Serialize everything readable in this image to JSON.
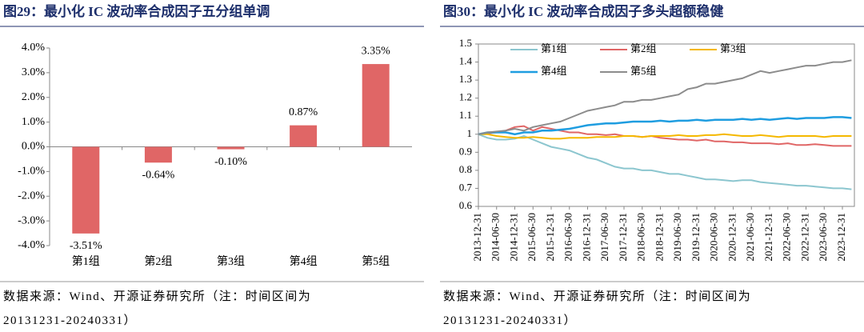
{
  "chart_data": [
    {
      "type": "bar",
      "title": "图29：最小化 IC 波动率合成因子五分组单调",
      "categories": [
        "第1组",
        "第2组",
        "第3组",
        "第4组",
        "第5组"
      ],
      "values": [
        -3.51,
        -0.64,
        -0.1,
        0.87,
        3.35
      ],
      "value_labels": [
        "-3.51%",
        "-0.64%",
        "-0.10%",
        "0.87%",
        "3.35%"
      ],
      "color": "#e06666",
      "ylim": [
        -4,
        4
      ],
      "yticks": [
        {
          "value": -4,
          "label": "-4.0%"
        },
        {
          "value": -3,
          "label": "-3.0%"
        },
        {
          "value": -2,
          "label": "-2.0%"
        },
        {
          "value": -1,
          "label": "-1.0%"
        },
        {
          "value": 0,
          "label": "0.0%"
        },
        {
          "value": 1,
          "label": "1.0%"
        },
        {
          "value": 2,
          "label": "2.0%"
        },
        {
          "value": 3,
          "label": "3.0%"
        },
        {
          "value": 4,
          "label": "4.0%"
        }
      ],
      "source": "数据来源：Wind、开源证券研究所（注：时间区间为20131231-20240331）"
    },
    {
      "type": "line",
      "title": "图30：最小化 IC 波动率合成因子多头超额稳健",
      "x": [
        "2013-12-31",
        null,
        "2014-06-30",
        null,
        "2014-12-31",
        null,
        "2015-06-30",
        null,
        "2015-12-31",
        null,
        "2016-06-30",
        null,
        "2016-12-31",
        null,
        "2017-06-30",
        null,
        "2017-12-31",
        null,
        "2018-06-30",
        null,
        "2018-12-31",
        null,
        "2019-06-30",
        null,
        "2019-12-31",
        null,
        "2020-06-30",
        null,
        "2020-12-31",
        null,
        "2021-06-30",
        null,
        "2021-12-31",
        null,
        "2022-06-30",
        null,
        "2022-12-31",
        null,
        "2023-06-30",
        null,
        "2023-12-31",
        null
      ],
      "series": [
        {
          "name": "第1组",
          "color": "#8cc6cf",
          "values": [
            1.0,
            0.98,
            0.97,
            0.97,
            0.975,
            0.99,
            0.97,
            0.95,
            0.93,
            0.92,
            0.91,
            0.89,
            0.87,
            0.86,
            0.84,
            0.82,
            0.81,
            0.81,
            0.8,
            0.8,
            0.79,
            0.78,
            0.78,
            0.77,
            0.76,
            0.75,
            0.75,
            0.745,
            0.74,
            0.745,
            0.745,
            0.735,
            0.73,
            0.725,
            0.72,
            0.715,
            0.715,
            0.71,
            0.705,
            0.7,
            0.7,
            0.695
          ]
        },
        {
          "name": "第2组",
          "color": "#e06666",
          "values": [
            1.0,
            1.005,
            1.01,
            1.02,
            1.04,
            1.045,
            1.02,
            1.04,
            1.03,
            1.02,
            1.01,
            1.01,
            1.0,
            1.0,
            0.995,
            1.0,
            0.99,
            0.99,
            0.985,
            0.99,
            0.98,
            0.975,
            0.97,
            0.97,
            0.965,
            0.97,
            0.96,
            0.96,
            0.955,
            0.955,
            0.95,
            0.95,
            0.95,
            0.945,
            0.95,
            0.94,
            0.94,
            0.945,
            0.94,
            0.935,
            0.935,
            0.935
          ]
        },
        {
          "name": "第3组",
          "color": "#f5b800",
          "values": [
            1.0,
            1.0,
            0.99,
            0.985,
            0.98,
            0.98,
            0.985,
            0.98,
            0.975,
            0.975,
            0.98,
            0.98,
            0.98,
            0.985,
            0.985,
            0.985,
            0.99,
            0.99,
            0.985,
            0.99,
            0.99,
            0.99,
            0.995,
            0.99,
            0.99,
            0.995,
            0.995,
            1.0,
            0.995,
            0.99,
            0.99,
            0.995,
            0.99,
            0.985,
            0.99,
            0.99,
            0.99,
            0.99,
            0.985,
            0.99,
            0.99,
            0.99
          ]
        },
        {
          "name": "第4组",
          "color": "#1f9de0",
          "values": [
            1.0,
            1.01,
            1.01,
            1.01,
            1.0,
            1.01,
            1.01,
            1.02,
            1.02,
            1.025,
            1.03,
            1.04,
            1.05,
            1.055,
            1.06,
            1.06,
            1.065,
            1.07,
            1.07,
            1.07,
            1.075,
            1.07,
            1.075,
            1.075,
            1.08,
            1.075,
            1.08,
            1.08,
            1.08,
            1.085,
            1.08,
            1.085,
            1.08,
            1.085,
            1.09,
            1.085,
            1.09,
            1.09,
            1.09,
            1.095,
            1.095,
            1.09
          ]
        },
        {
          "name": "第5组",
          "color": "#8c8c8c",
          "values": [
            1.0,
            1.01,
            1.015,
            1.02,
            1.03,
            1.02,
            1.04,
            1.05,
            1.06,
            1.07,
            1.09,
            1.11,
            1.13,
            1.14,
            1.15,
            1.16,
            1.18,
            1.18,
            1.19,
            1.19,
            1.2,
            1.21,
            1.22,
            1.25,
            1.26,
            1.28,
            1.28,
            1.29,
            1.3,
            1.31,
            1.33,
            1.35,
            1.34,
            1.35,
            1.36,
            1.37,
            1.38,
            1.38,
            1.39,
            1.4,
            1.4,
            1.41
          ]
        }
      ],
      "ylim": [
        0.6,
        1.5
      ],
      "yticks": [
        0.6,
        0.7,
        0.8,
        0.9,
        1,
        1.1,
        1.2,
        1.3,
        1.4,
        1.5
      ],
      "legend": "upper left",
      "source": "数据来源：Wind、开源证券研究所（注：时间区间为20131231-20240331）"
    }
  ]
}
